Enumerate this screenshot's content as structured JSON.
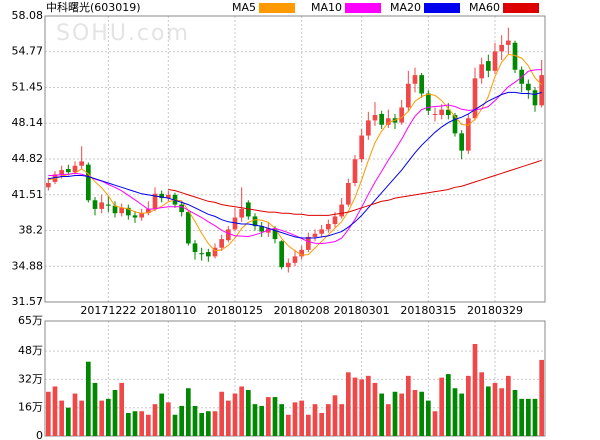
{
  "chart_data": [
    {
      "type": "candlestick",
      "title": "中科曙光(603019)",
      "watermark": "SOHU.com",
      "up_color": "#f04848",
      "down_color": "#008800",
      "grid": true,
      "ylim": [
        31.57,
        58.08
      ],
      "yticks": [
        58.08,
        54.77,
        51.45,
        48.14,
        44.82,
        41.51,
        38.2,
        34.88,
        31.57
      ],
      "categories": [
        null,
        null,
        null,
        null,
        null,
        null,
        null,
        null,
        null,
        "20171222",
        null,
        null,
        null,
        null,
        null,
        null,
        null,
        null,
        "20180110",
        null,
        null,
        null,
        null,
        null,
        null,
        null,
        null,
        null,
        "20180125",
        null,
        null,
        null,
        null,
        null,
        null,
        null,
        null,
        null,
        "20180208",
        null,
        null,
        null,
        null,
        null,
        null,
        null,
        null,
        "20180301",
        null,
        null,
        null,
        null,
        null,
        null,
        null,
        null,
        null,
        "20180315",
        null,
        null,
        null,
        null,
        null,
        null,
        null,
        null,
        null,
        "20180329",
        null,
        null,
        null,
        null,
        null,
        null,
        null
      ],
      "ohlc": [
        [
          42.2,
          43.1,
          41.9,
          42.6
        ],
        [
          42.7,
          43.7,
          42.5,
          43.4
        ],
        [
          43.3,
          44.2,
          43.0,
          43.8
        ],
        [
          43.9,
          44.3,
          43.3,
          43.6
        ],
        [
          43.6,
          44.6,
          43.4,
          44.2
        ],
        [
          44.2,
          46.0,
          43.9,
          44.6
        ],
        [
          44.3,
          44.5,
          40.8,
          41.0
        ],
        [
          41.0,
          41.3,
          39.6,
          40.2
        ],
        [
          40.2,
          41.5,
          39.8,
          40.8
        ],
        [
          40.6,
          41.4,
          39.9,
          40.5
        ],
        [
          40.5,
          40.9,
          39.4,
          39.8
        ],
        [
          39.8,
          40.7,
          39.5,
          40.3
        ],
        [
          40.3,
          40.6,
          39.2,
          39.6
        ],
        [
          39.6,
          40.0,
          38.9,
          39.4
        ],
        [
          39.4,
          40.2,
          39.1,
          39.8
        ],
        [
          39.8,
          40.9,
          39.6,
          40.2
        ],
        [
          40.2,
          42.2,
          40.0,
          41.6
        ],
        [
          41.6,
          41.9,
          40.8,
          41.2
        ],
        [
          41.2,
          41.9,
          40.9,
          41.5
        ],
        [
          41.5,
          41.7,
          40.3,
          40.6
        ],
        [
          40.6,
          40.9,
          39.5,
          39.9
        ],
        [
          39.9,
          40.0,
          36.8,
          37.0
        ],
        [
          37.0,
          37.3,
          35.5,
          36.2
        ],
        [
          36.1,
          36.6,
          35.4,
          36.0
        ],
        [
          36.2,
          36.5,
          35.3,
          35.8
        ],
        [
          35.8,
          37.0,
          35.6,
          36.6
        ],
        [
          36.6,
          37.8,
          36.3,
          37.4
        ],
        [
          37.3,
          38.6,
          37.1,
          38.3
        ],
        [
          38.3,
          40.3,
          38.1,
          39.4
        ],
        [
          39.4,
          42.2,
          39.0,
          40.2
        ],
        [
          40.8,
          41.0,
          39.2,
          39.5
        ],
        [
          39.5,
          39.8,
          38.2,
          38.6
        ],
        [
          38.6,
          39.0,
          37.6,
          38.1
        ],
        [
          38.0,
          38.9,
          37.6,
          38.4
        ],
        [
          38.4,
          38.6,
          37.0,
          37.4
        ],
        [
          37.2,
          37.3,
          34.6,
          34.8
        ],
        [
          34.8,
          35.6,
          34.3,
          35.2
        ],
        [
          35.2,
          36.4,
          34.9,
          35.8
        ],
        [
          35.8,
          36.8,
          35.5,
          36.4
        ],
        [
          36.4,
          38.0,
          36.2,
          37.6
        ],
        [
          37.6,
          38.3,
          37.2,
          37.9
        ],
        [
          37.9,
          38.7,
          37.6,
          38.3
        ],
        [
          38.3,
          39.2,
          38.0,
          38.8
        ],
        [
          38.8,
          39.9,
          38.5,
          39.5
        ],
        [
          39.5,
          41.2,
          39.3,
          40.6
        ],
        [
          40.6,
          43.0,
          40.4,
          42.6
        ],
        [
          42.6,
          45.2,
          42.3,
          44.8
        ],
        [
          44.8,
          47.6,
          44.5,
          47.0
        ],
        [
          47.0,
          49.2,
          46.6,
          48.4
        ],
        [
          48.4,
          50.1,
          47.9,
          48.9
        ],
        [
          49.0,
          49.3,
          47.6,
          48.0
        ],
        [
          48.0,
          49.4,
          47.7,
          48.6
        ],
        [
          48.6,
          49.0,
          47.6,
          48.2
        ],
        [
          48.2,
          50.3,
          48.0,
          49.6
        ],
        [
          49.6,
          53.0,
          49.3,
          51.8
        ],
        [
          51.8,
          53.3,
          51.0,
          52.6
        ],
        [
          52.6,
          52.8,
          50.5,
          50.9
        ],
        [
          50.9,
          51.2,
          48.9,
          49.3
        ],
        [
          49.0,
          49.6,
          48.3,
          49.0
        ],
        [
          48.9,
          49.9,
          48.5,
          49.4
        ],
        [
          49.4,
          50.0,
          48.5,
          48.9
        ],
        [
          48.9,
          49.1,
          46.9,
          47.2
        ],
        [
          47.2,
          47.5,
          44.8,
          45.6
        ],
        [
          45.6,
          49.0,
          45.3,
          48.6
        ],
        [
          48.6,
          53.3,
          48.4,
          52.3
        ],
        [
          52.3,
          54.2,
          51.8,
          53.6
        ],
        [
          53.9,
          54.5,
          52.4,
          53.0
        ],
        [
          53.0,
          55.6,
          52.7,
          54.8
        ],
        [
          54.8,
          56.3,
          54.0,
          55.4
        ],
        [
          55.4,
          57.0,
          54.5,
          55.8
        ],
        [
          55.6,
          55.8,
          52.8,
          53.1
        ],
        [
          53.1,
          53.4,
          51.0,
          51.8
        ],
        [
          51.8,
          52.2,
          50.4,
          51.2
        ],
        [
          51.2,
          51.5,
          49.2,
          49.8
        ],
        [
          49.8,
          54.0,
          49.6,
          52.6
        ]
      ],
      "series": [
        {
          "name": "MA5",
          "color": "#ff9900",
          "values": [
            42.9,
            43.0,
            43.2,
            43.4,
            43.52,
            43.92,
            43.44,
            42.72,
            42.16,
            41.42,
            40.46,
            40.32,
            40.2,
            39.92,
            39.78,
            39.86,
            40.12,
            40.44,
            40.86,
            41.02,
            40.96,
            40.04,
            39.04,
            37.94,
            36.98,
            36.32,
            36.4,
            36.82,
            37.5,
            38.38,
            38.96,
            39.2,
            39.16,
            38.96,
            38.4,
            37.46,
            36.78,
            36.32,
            35.92,
            35.96,
            36.58,
            37.2,
            37.8,
            38.42,
            39.02,
            39.96,
            41.26,
            42.9,
            44.68,
            46.34,
            47.42,
            48.18,
            48.42,
            48.66,
            49.24,
            50.16,
            50.62,
            50.84,
            50.72,
            50.24,
            49.5,
            48.76,
            48.02,
            47.94,
            48.52,
            49.46,
            50.62,
            52.46,
            53.82,
            54.52,
            54.42,
            54.18,
            53.46,
            52.34,
            51.7
          ]
        },
        {
          "name": "MA10",
          "color": "#ff00ff",
          "values": [
            43.3,
            43.3,
            43.4,
            43.4,
            43.5,
            43.41,
            43.22,
            42.96,
            42.78,
            42.47,
            42.19,
            41.88,
            41.46,
            41.04,
            40.6,
            40.16,
            40.22,
            40.32,
            40.39,
            40.4,
            40.41,
            40.08,
            39.74,
            39.4,
            39.0,
            38.64,
            38.22,
            37.93,
            37.72,
            37.68,
            37.64,
            37.8,
            37.99,
            38.23,
            38.39,
            38.21,
            37.99,
            37.74,
            37.44,
            37.18,
            37.02,
            36.99,
            37.06,
            37.17,
            37.49,
            38.27,
            39.23,
            40.35,
            41.55,
            42.68,
            43.69,
            44.72,
            45.66,
            46.67,
            47.79,
            48.79,
            49.4,
            49.63,
            49.69,
            49.74,
            49.83,
            49.69,
            49.43,
            49.33,
            49.38,
            49.48,
            49.69,
            50.24,
            50.88,
            51.52,
            51.94,
            52.4,
            52.96,
            53.08,
            53.11
          ]
        },
        {
          "name": "MA20",
          "color": "#0000ee",
          "values": [
            43.0,
            43.1,
            43.2,
            43.2,
            43.3,
            43.3,
            43.2,
            43.0,
            42.8,
            42.6,
            42.4,
            42.2,
            42.0,
            41.8,
            41.6,
            41.5,
            41.4,
            41.3,
            41.2,
            41.0,
            40.8,
            40.6,
            40.3,
            40.0,
            39.7,
            39.5,
            39.2,
            39.0,
            38.9,
            38.8,
            38.8,
            38.7,
            38.6,
            38.4,
            38.2,
            38.0,
            37.8,
            37.6,
            37.5,
            37.5,
            37.5,
            37.6,
            37.7,
            37.9,
            38.1,
            38.5,
            39.0,
            39.6,
            40.3,
            41.0,
            41.7,
            42.4,
            43.1,
            43.8,
            44.6,
            45.4,
            46.1,
            46.7,
            47.3,
            47.8,
            48.2,
            48.5,
            48.7,
            49.0,
            49.4,
            49.8,
            50.2,
            50.5,
            50.8,
            51.0,
            51.0,
            50.9,
            50.9,
            50.8,
            51.0
          ]
        },
        {
          "name": "MA60",
          "color": "#dd0000",
          "values": [
            null,
            null,
            null,
            null,
            null,
            null,
            null,
            null,
            null,
            null,
            null,
            null,
            null,
            null,
            null,
            null,
            null,
            null,
            42.0,
            41.9,
            41.7,
            41.5,
            41.3,
            41.1,
            40.9,
            40.8,
            40.6,
            40.5,
            40.4,
            40.3,
            40.2,
            40.1,
            40.0,
            39.9,
            39.9,
            39.8,
            39.8,
            39.7,
            39.7,
            39.6,
            39.6,
            39.6,
            39.6,
            39.7,
            39.8,
            39.9,
            40.1,
            40.3,
            40.5,
            40.7,
            40.9,
            41.0,
            41.2,
            41.3,
            41.4,
            41.5,
            41.6,
            41.7,
            41.8,
            41.9,
            42.0,
            42.2,
            42.3,
            42.5,
            42.7,
            42.9,
            43.1,
            43.3,
            43.5,
            43.7,
            43.9,
            44.1,
            44.3,
            44.5,
            44.7
          ]
        }
      ]
    },
    {
      "type": "bar",
      "ylim": [
        0,
        65
      ],
      "yticks": [
        {
          "value": 65,
          "label": "65万"
        },
        {
          "value": 48,
          "label": "48万"
        },
        {
          "value": 32,
          "label": "32万"
        },
        {
          "value": 16,
          "label": "16万"
        },
        0
      ],
      "values": [
        25,
        28,
        20,
        16,
        24,
        20,
        42,
        30,
        20,
        21,
        26,
        30,
        13,
        14,
        14,
        12,
        18,
        24,
        19,
        12,
        17,
        27,
        17,
        13,
        14,
        14,
        25,
        20,
        24,
        28,
        26,
        18,
        17,
        22,
        22,
        18,
        12,
        19,
        20,
        12,
        18,
        13,
        18,
        23,
        18,
        36,
        33,
        32,
        34,
        30,
        24,
        18,
        25,
        24,
        34,
        26,
        25,
        20,
        14,
        33,
        35,
        27,
        24,
        34,
        52,
        36,
        28,
        30,
        27,
        34,
        26,
        21,
        21,
        21,
        43
      ]
    }
  ]
}
